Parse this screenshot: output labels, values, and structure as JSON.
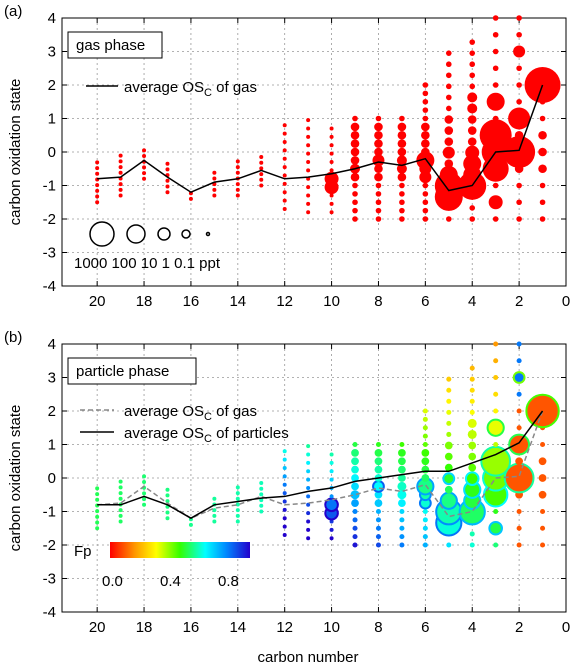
{
  "chart_data": [
    {
      "panel_label": "(a)",
      "type": "scatter",
      "subtitle_box": "gas phase",
      "xlabel": "",
      "ylabel": "carbon oxidation state",
      "xlim": [
        21.5,
        0
      ],
      "ylim": [
        -4,
        4
      ],
      "xticks": [
        20,
        18,
        16,
        14,
        12,
        10,
        8,
        6,
        4,
        2,
        0
      ],
      "yticks": [
        -4,
        -3,
        -2,
        -1,
        0,
        1,
        2,
        3,
        4
      ],
      "grid": true,
      "legend": {
        "line_label_prefix": "average OS",
        "line_label_sub": "C",
        "line_label_suffix": " of gas",
        "size_values": [
          "1000",
          "100",
          "10",
          "1",
          "0.1 ppt"
        ]
      },
      "marker_color": "#ff0000",
      "avg_line": {
        "name": "average OSC of gas",
        "x": [
          20,
          19,
          18,
          17,
          16,
          15,
          14,
          13,
          12,
          11,
          10,
          9,
          8,
          7,
          6,
          5,
          4,
          3,
          2,
          1
        ],
        "y": [
          -0.8,
          -0.75,
          -0.25,
          -0.75,
          -1.2,
          -0.9,
          -0.8,
          -0.55,
          -0.8,
          -0.75,
          -0.65,
          -0.5,
          -0.3,
          -0.4,
          -0.2,
          -1.15,
          -1.0,
          0.0,
          0.05,
          2.0
        ]
      }
    },
    {
      "panel_label": "(b)",
      "type": "scatter",
      "subtitle_box": "particle phase",
      "xlabel": "carbon number",
      "ylabel": "carbon oxidation state",
      "xlim": [
        21.5,
        0
      ],
      "ylim": [
        -4,
        4
      ],
      "xticks": [
        20,
        18,
        16,
        14,
        12,
        10,
        8,
        6,
        4,
        2,
        0
      ],
      "yticks": [
        -4,
        -3,
        -2,
        -1,
        0,
        1,
        2,
        3,
        4
      ],
      "grid": true,
      "legend": {
        "gas_line_prefix": "average OS",
        "gas_line_sub": "C",
        "gas_line_suffix": " of gas",
        "particle_line_prefix": "average OS",
        "particle_line_sub": "C",
        "particle_line_suffix": " of particles"
      },
      "colorbar": {
        "label": "Fp",
        "ticks": [
          "0.0",
          "0.4",
          "0.8"
        ],
        "range": [
          0,
          1
        ]
      },
      "avg_gas_line": {
        "name": "average OSC of gas",
        "x": [
          20,
          19,
          18,
          17,
          16,
          15,
          14,
          13,
          12,
          11,
          10,
          9,
          8,
          7,
          6,
          5,
          4,
          3,
          2,
          1
        ],
        "y": [
          -0.8,
          -0.75,
          -0.25,
          -0.75,
          -1.2,
          -0.9,
          -0.8,
          -0.55,
          -0.8,
          -0.75,
          -0.65,
          -0.5,
          -0.3,
          -0.4,
          -0.2,
          -1.15,
          -1.0,
          0.0,
          0.05,
          2.0
        ]
      },
      "avg_particle_line": {
        "name": "average OSC of particles",
        "x": [
          20,
          19,
          18,
          17,
          16,
          15,
          14,
          13,
          12,
          11,
          10,
          9,
          8,
          7,
          6,
          5,
          4,
          3,
          2,
          1
        ],
        "y": [
          -0.8,
          -0.8,
          -0.55,
          -0.8,
          -1.2,
          -0.8,
          -0.7,
          -0.6,
          -0.55,
          -0.4,
          -0.3,
          -0.1,
          0.0,
          0.1,
          0.2,
          0.2,
          0.45,
          0.7,
          1.05,
          2.0
        ]
      }
    }
  ],
  "axes_caption": "carbon number"
}
